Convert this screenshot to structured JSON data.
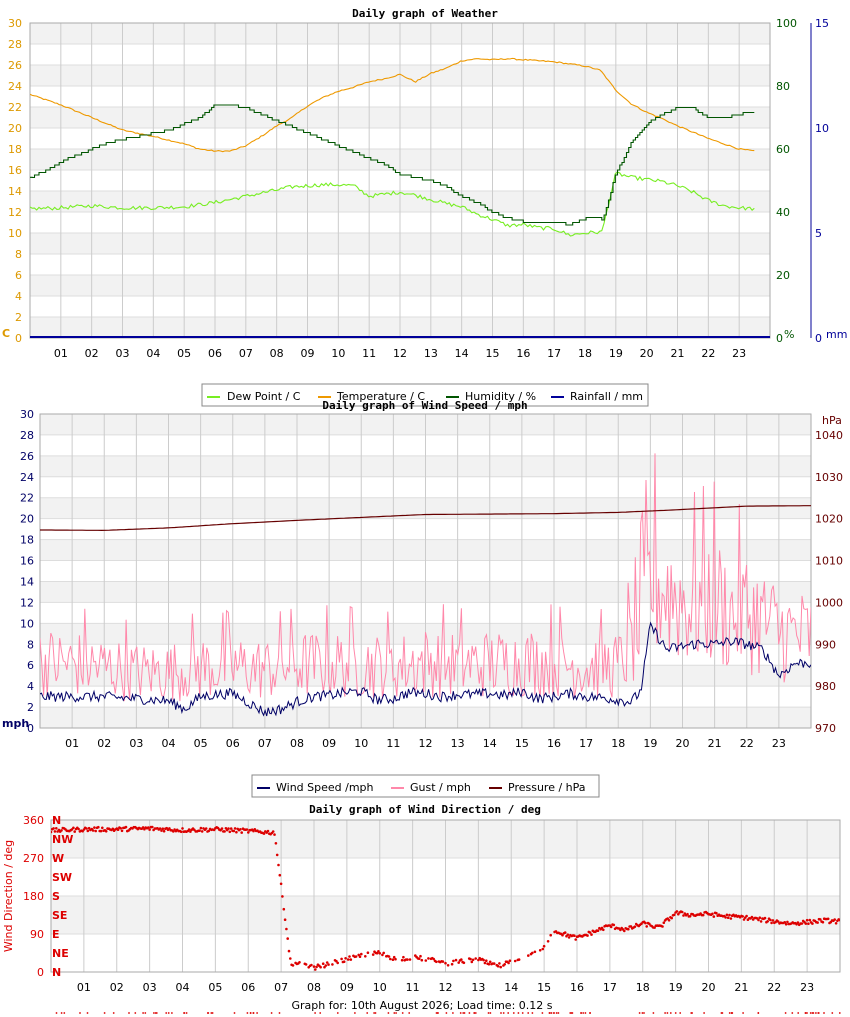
{
  "charts": {
    "weather": {
      "title": "Daily graph of Weather",
      "x_ticks": [
        "01",
        "02",
        "03",
        "04",
        "05",
        "06",
        "07",
        "08",
        "09",
        "10",
        "11",
        "12",
        "13",
        "14",
        "15",
        "16",
        "17",
        "18",
        "19",
        "20",
        "21",
        "22",
        "23"
      ],
      "unit_left": "C",
      "unit_mid": "%",
      "unit_right": "mm",
      "legend": [
        "Dew Point / C",
        "Temperature / C",
        "Humidity / %",
        "Rainfall / mm"
      ]
    },
    "wind": {
      "title": "Daily graph of Wind Speed / mph",
      "x_ticks": [
        "01",
        "02",
        "03",
        "04",
        "05",
        "06",
        "07",
        "08",
        "09",
        "10",
        "11",
        "12",
        "13",
        "14",
        "15",
        "16",
        "17",
        "18",
        "19",
        "20",
        "21",
        "22",
        "23"
      ],
      "unit_left": "mph",
      "unit_right": "hPa",
      "legend": [
        "Wind Speed /mph",
        "Gust / mph",
        "Pressure / hPa"
      ]
    },
    "direction": {
      "title": "Daily graph of Wind Direction / deg",
      "x_ticks": [
        "01",
        "02",
        "03",
        "04",
        "05",
        "06",
        "07",
        "08",
        "09",
        "10",
        "11",
        "12",
        "13",
        "14",
        "15",
        "16",
        "17",
        "18",
        "19",
        "20",
        "21",
        "22",
        "23"
      ],
      "ylabel": "Wind Direction / deg",
      "compass": [
        "N",
        "NW",
        "W",
        "SW",
        "S",
        "SE",
        "E",
        "NE",
        "N"
      ]
    }
  },
  "footer": "Graph for: 10th August 2026; Load time: 0.12 s",
  "colors": {
    "dew": "#77ee22",
    "temp": "#ee9900",
    "humidity": "#005500",
    "rain": "#000099",
    "wind": "#000066",
    "gust": "#ff88aa",
    "pressure": "#660000",
    "direction": "#dd0000",
    "left_axis": "#dd9900",
    "band": "#f2f2f2",
    "grid": "#cccccc"
  },
  "chart_data": [
    {
      "type": "line",
      "title": "Daily graph of Weather",
      "x_range": [
        0,
        24
      ],
      "ylim_left": [
        0,
        30
      ],
      "ylim_humidity": [
        0,
        100
      ],
      "ylim_rain": [
        0,
        15
      ],
      "series": [
        {
          "name": "Temperature / C",
          "axis": "left",
          "x": [
            0,
            1,
            2,
            3,
            4,
            5,
            5.5,
            6,
            6.5,
            7,
            7.5,
            8,
            8.5,
            9,
            9.5,
            10,
            10.5,
            11,
            11.5,
            12,
            12.5,
            13,
            13.5,
            14,
            14.5,
            15,
            15.5,
            16,
            16.5,
            17,
            17.5,
            18,
            18.5,
            19,
            19.5,
            20,
            20.5,
            21,
            21.5,
            22,
            22.5,
            23,
            23.5
          ],
          "values": [
            23.2,
            22.2,
            21.0,
            19.8,
            19.2,
            18.5,
            18.0,
            17.8,
            17.8,
            18.3,
            19.2,
            20.2,
            21.0,
            22.1,
            22.9,
            23.5,
            23.9,
            24.4,
            24.7,
            25.1,
            24.4,
            25.2,
            25.7,
            26.4,
            26.6,
            26.5,
            26.6,
            26.5,
            26.4,
            26.3,
            26.1,
            25.9,
            25.5,
            23.6,
            22.3,
            21.5,
            20.9,
            20.2,
            19.6,
            19.0,
            18.5,
            18.0,
            17.8
          ]
        },
        {
          "name": "Dew Point / C",
          "axis": "left",
          "x": [
            0,
            1,
            2,
            3,
            4,
            5,
            6,
            6.5,
            7,
            7.5,
            8,
            8.5,
            9,
            9.5,
            10,
            10.5,
            11,
            11.5,
            12,
            12.5,
            13,
            13.5,
            14,
            14.5,
            15,
            15.5,
            16,
            16.5,
            17,
            17.5,
            18,
            18.5,
            18.55,
            19,
            19.5,
            20,
            20.5,
            21,
            21.5,
            22,
            22.5,
            23,
            23.5
          ],
          "values": [
            12.3,
            12.4,
            12.6,
            12.4,
            12.4,
            12.5,
            12.9,
            13.2,
            13.5,
            13.8,
            14.1,
            14.4,
            14.5,
            14.6,
            14.6,
            14.5,
            13.5,
            13.7,
            13.9,
            13.6,
            13.2,
            12.8,
            12.5,
            11.8,
            11.3,
            10.7,
            10.8,
            10.5,
            10.4,
            9.8,
            10.0,
            10.1,
            10.1,
            15.7,
            15.3,
            15.1,
            14.9,
            14.5,
            13.9,
            13.1,
            12.6,
            12.4,
            12.3
          ]
        },
        {
          "name": "Humidity / %",
          "axis": "humidity",
          "x": [
            0,
            0.5,
            1,
            1.5,
            2,
            2.5,
            3,
            3.5,
            4,
            4.5,
            5,
            5.5,
            6,
            6.5,
            7,
            7.5,
            8,
            8.5,
            9,
            9.5,
            10,
            10.5,
            11,
            11.5,
            12,
            12.5,
            13,
            13.5,
            14,
            14.5,
            15,
            15.5,
            16,
            16.5,
            17,
            17.5,
            18,
            18.5,
            18.55,
            19,
            19.5,
            20,
            20.5,
            21,
            21.5,
            22,
            22.5,
            23,
            23.5
          ],
          "values": [
            51,
            53,
            56,
            58,
            60,
            62,
            63,
            64,
            65,
            66,
            68,
            70,
            74,
            74,
            73,
            71,
            69,
            67,
            65,
            63,
            61,
            59,
            57,
            55,
            52,
            51,
            50,
            48,
            45,
            43,
            40,
            38,
            37,
            37,
            37,
            36,
            38,
            38,
            37,
            52,
            62,
            68,
            71,
            73,
            73,
            70,
            70,
            71,
            72
          ]
        },
        {
          "name": "Rainfall / mm",
          "axis": "rain",
          "x": [
            0,
            24
          ],
          "values": [
            0,
            0
          ]
        }
      ]
    },
    {
      "type": "line",
      "title": "Daily graph of Wind Speed / mph",
      "x_range": [
        0,
        24
      ],
      "ylim_left": [
        0,
        30
      ],
      "ylim_pressure": [
        970,
        1045
      ],
      "series": [
        {
          "name": "Wind Speed /mph",
          "axis": "left",
          "x": [
            0,
            1,
            2,
            3,
            4,
            4.5,
            5,
            5.5,
            6,
            6.5,
            7,
            7.5,
            8,
            8.5,
            9,
            9.5,
            10,
            10.5,
            11,
            11.5,
            12,
            12.5,
            13,
            13.5,
            14,
            14.5,
            15,
            15.5,
            16,
            16.5,
            17,
            17.5,
            18,
            18.4,
            18.7,
            19,
            19.5,
            20,
            20.5,
            21,
            21.5,
            22,
            22.5,
            23,
            23.5
          ],
          "values": [
            3.0,
            3.0,
            3.0,
            2.8,
            2.6,
            1.8,
            3.0,
            3.2,
            3.3,
            2.4,
            1.5,
            1.8,
            2.5,
            3.0,
            3.1,
            3.4,
            3.5,
            2.7,
            2.8,
            3.4,
            3.3,
            3.0,
            3.2,
            3.2,
            3.3,
            3.1,
            3.5,
            2.8,
            3.0,
            3.3,
            3.0,
            2.9,
            2.7,
            2.5,
            3.5,
            9.8,
            7.5,
            7.8,
            8.1,
            8.0,
            8.3,
            8.0,
            7.5,
            5.0,
            6.2
          ]
        },
        {
          "name": "Gust / mph",
          "axis": "left",
          "x": [
            0,
            1,
            2,
            3,
            4,
            5,
            6,
            7,
            8,
            9,
            10,
            11,
            12,
            13,
            14,
            15,
            16,
            17,
            18,
            18.6,
            19,
            19.5,
            20,
            20.5,
            21,
            21.5,
            22,
            22.5,
            23,
            23.5
          ],
          "values": [
            6.5,
            6.3,
            6.0,
            5.5,
            5.5,
            6.0,
            6.0,
            5.8,
            6.2,
            6.3,
            6.2,
            6.0,
            6.5,
            6.2,
            6.3,
            6.5,
            6.4,
            6.0,
            6.1,
            9.0,
            14.5,
            13.5,
            12.5,
            12.0,
            12.8,
            11.0,
            11.5,
            10.5,
            9.5,
            9.0
          ]
        },
        {
          "name": "Pressure / hPa",
          "axis": "pressure",
          "x": [
            0,
            2,
            4,
            6,
            8,
            10,
            12,
            14,
            16,
            18,
            19.5,
            21,
            22,
            24
          ],
          "values": [
            1017.3,
            1017.2,
            1017.8,
            1018.8,
            1019.6,
            1020.3,
            1021.0,
            1021.1,
            1021.2,
            1021.5,
            1022.0,
            1022.6,
            1023.0,
            1023.1
          ]
        }
      ]
    },
    {
      "type": "scatter",
      "title": "Daily graph of Wind Direction / deg",
      "x_range": [
        0,
        24
      ],
      "ylim": [
        0,
        360
      ],
      "series": [
        {
          "name": "Wind Direction / deg",
          "x": [
            0,
            1,
            2,
            3,
            4,
            5,
            6,
            6.8,
            7.3,
            7.6,
            8.0,
            8.5,
            9.0,
            9.5,
            10.0,
            10.5,
            11.0,
            11.5,
            12.0,
            12.5,
            13.0,
            13.3,
            13.7,
            14.0,
            14.5,
            15.0,
            15.3,
            15.6,
            16.0,
            16.5,
            17.0,
            17.5,
            18.0,
            18.5,
            19.0,
            19.5,
            20.0,
            20.5,
            21.0,
            21.5,
            22.0,
            22.5,
            23.0,
            23.5,
            23.9
          ],
          "values": [
            335,
            338,
            338,
            340,
            336,
            338,
            334,
            330,
            15,
            20,
            10,
            20,
            30,
            40,
            45,
            30,
            35,
            30,
            20,
            25,
            30,
            20,
            15,
            25,
            40,
            60,
            100,
            90,
            80,
            95,
            110,
            100,
            115,
            105,
            140,
            135,
            138,
            132,
            130,
            125,
            120,
            115,
            118,
            122,
            120
          ]
        }
      ]
    }
  ]
}
